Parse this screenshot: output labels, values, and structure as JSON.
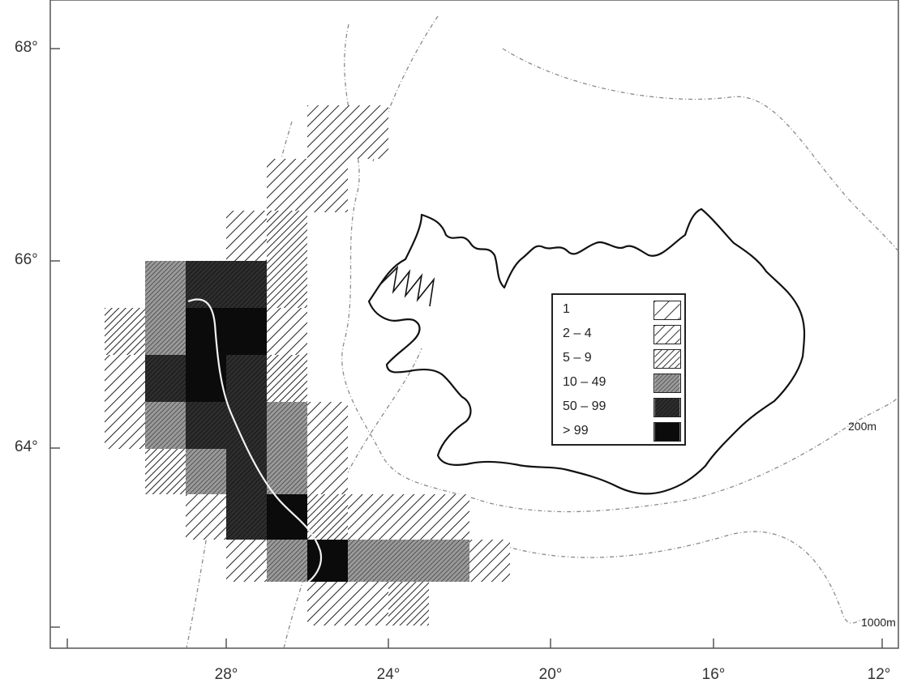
{
  "axes": {
    "latitude_labels": [
      "68°",
      "66°",
      "64°"
    ],
    "longitude_labels": [
      "28°",
      "24°",
      "20°",
      "16°",
      "12°"
    ]
  },
  "isobaths": {
    "shallow_label": "200m",
    "deep_label": "1000m"
  },
  "legend": {
    "classes": [
      {
        "label": "1",
        "pattern": "sparse-hatch"
      },
      {
        "label": "2 – 4",
        "pattern": "medium-hatch"
      },
      {
        "label": "5 – 9",
        "pattern": "dense-hatch"
      },
      {
        "label": "10 – 49",
        "pattern": "fine-hatch-grey"
      },
      {
        "label": "50 – 99",
        "pattern": "dark-crosshatch"
      },
      {
        "label": "> 99",
        "pattern": "solid-black"
      }
    ]
  },
  "colors": {
    "coastline": "#111111",
    "isobath": "#888888",
    "frame": "#555555"
  }
}
